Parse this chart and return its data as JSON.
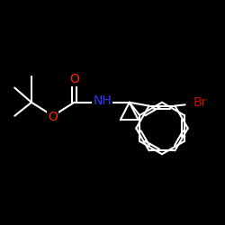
{
  "bg_color": "#000000",
  "bond_color": "#ffffff",
  "line_width": 1.5,
  "font_size": 10,
  "label_NH": "NH",
  "label_O1": "O",
  "label_O2": "O",
  "label_Br": "Br",
  "color_NH": "#3333ff",
  "color_O": "#ff2200",
  "color_Br": "#cc1100",
  "bond_lw": 1.5,
  "figsize": [
    2.5,
    2.5
  ],
  "dpi": 100
}
